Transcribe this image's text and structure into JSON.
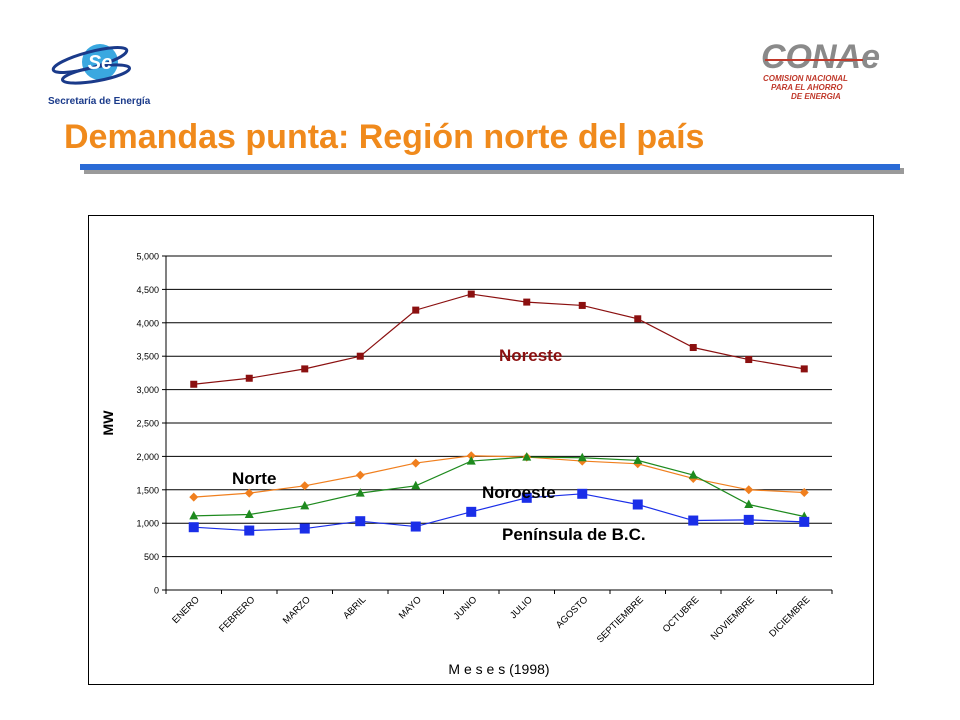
{
  "header": {
    "left_logo_text": "Secretaría de Energía",
    "left_logo_monogram": "Se",
    "right_logo_text": "CONAe",
    "right_logo_subtitle": [
      "COMISION NACIONAL",
      "PARA EL AHORRO",
      "DE ENERGIA"
    ],
    "title": "Demandas punta: Región norte del país"
  },
  "colors": {
    "title": "#f08a1c",
    "title_bar": "#2a6bd6",
    "noreste": "#8b1010",
    "norte": "#f07f1e",
    "noroeste": "#1e8a1e",
    "peninsula": "#1a2ee8"
  },
  "chart_data": {
    "type": "line",
    "categories": [
      "ENERO",
      "FEBRERO",
      "MARZO",
      "ABRIL",
      "MAYO",
      "JUNIO",
      "JULIO",
      "AGOSTO",
      "SEPTIEMBRE",
      "OCTUBRE",
      "NOVIEMBRE",
      "DICIEMBRE"
    ],
    "xlabel": "M e s e s  (1998)",
    "ylabel": "MW",
    "ylim": [
      0,
      5000
    ],
    "yticks": [
      0,
      500,
      1000,
      1500,
      2000,
      2500,
      3000,
      3500,
      4000,
      4500,
      5000
    ],
    "ytick_labels": [
      "0",
      "500",
      "1,000",
      "1,500",
      "2,000",
      "2,500",
      "3,000",
      "3,500",
      "4,000",
      "4,500",
      "5,000"
    ],
    "grid": "horizontal",
    "series": [
      {
        "name": "Noreste",
        "marker": "square",
        "color": "#8b1010",
        "values": [
          3080,
          3170,
          3310,
          3500,
          4190,
          4430,
          4310,
          4260,
          4060,
          3630,
          3450,
          3310
        ]
      },
      {
        "name": "Norte",
        "marker": "diamond",
        "color": "#f07f1e",
        "values": [
          1390,
          1450,
          1560,
          1720,
          1900,
          2010,
          1990,
          1930,
          1890,
          1670,
          1500,
          1460
        ]
      },
      {
        "name": "Noroeste",
        "marker": "triangle",
        "color": "#1e8a1e",
        "values": [
          1110,
          1130,
          1260,
          1450,
          1560,
          1930,
          1990,
          1980,
          1940,
          1720,
          1280,
          1100
        ]
      },
      {
        "name": "Península de B.C.",
        "marker": "square-large",
        "color": "#1a2ee8",
        "values": [
          940,
          890,
          920,
          1030,
          950,
          1170,
          1380,
          1440,
          1280,
          1040,
          1050,
          1020
        ]
      }
    ],
    "annotations": [
      "Noreste",
      "Norte",
      "Noroeste",
      "Península de B.C."
    ]
  }
}
